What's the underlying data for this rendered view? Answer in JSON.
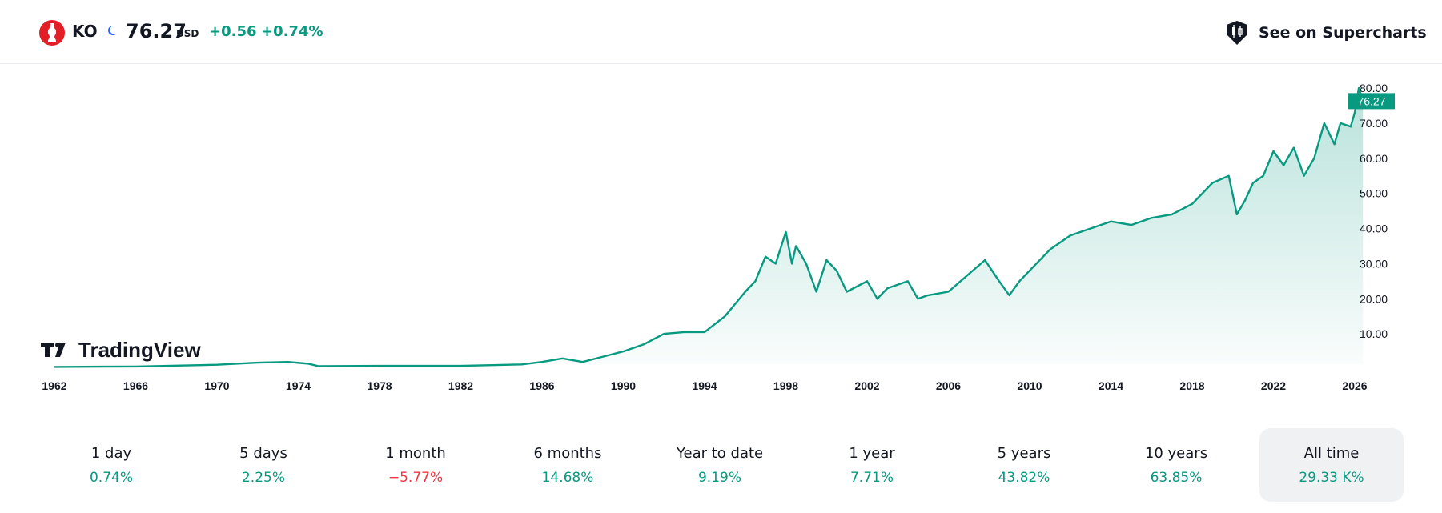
{
  "header": {
    "symbol": "KO",
    "price": "76.27",
    "currency": "USD",
    "change": "+0.56",
    "change_percent": "+0.74%",
    "supercharts_label": "See on Supercharts",
    "logo_icon": "coca-cola-bottle-icon",
    "session_icon": "moon-icon",
    "colors": {
      "up": "#089981",
      "down": "#f23645",
      "brand": "#e41e26"
    }
  },
  "chart_data": {
    "type": "area",
    "x_ticks": [
      "1962",
      "1966",
      "1970",
      "1974",
      "1978",
      "1982",
      "1986",
      "1990",
      "1994",
      "1998",
      "2002",
      "2006",
      "2010",
      "2014",
      "2018",
      "2022",
      "2026"
    ],
    "y_ticks": [
      "10.00",
      "20.00",
      "30.00",
      "40.00",
      "50.00",
      "60.00",
      "70.00",
      "80.00"
    ],
    "ylim": [
      0,
      80
    ],
    "last_price_label": "76.27",
    "line_color": "#089981",
    "watermark": "TradingView",
    "series": [
      {
        "x": [
          1962,
          1966,
          1970,
          1972,
          1973.5,
          1974.5,
          1975,
          1978,
          1982,
          1985,
          1986,
          1987,
          1987.8,
          1988,
          1989,
          1990,
          1991,
          1992,
          1993,
          1994,
          1995,
          1996,
          1996.5,
          1997,
          1997.5,
          1998,
          1998.3,
          1998.5,
          1999,
          1999.5,
          2000,
          2000.5,
          2001,
          2002,
          2002.5,
          2003,
          2003.5,
          2004,
          2004.5,
          2005,
          2006,
          2007,
          2007.8,
          2008.5,
          2009,
          2009.5,
          2010,
          2011,
          2012,
          2013,
          2014,
          2015,
          2016,
          2017,
          2018,
          2019,
          2019.8,
          2020.2,
          2020.6,
          2021,
          2021.5,
          2022,
          2022.5,
          2023,
          2023.5,
          2024,
          2024.5,
          2025,
          2025.3,
          2025.8,
          2026,
          2026.2,
          2026.4
        ],
        "y": [
          0.6,
          0.7,
          1.2,
          1.8,
          2.0,
          1.5,
          0.8,
          0.9,
          0.9,
          1.3,
          2.0,
          3.0,
          2.2,
          2.0,
          3.5,
          5.0,
          7.0,
          10.0,
          10.5,
          10.5,
          15.0,
          22.0,
          25.0,
          32.0,
          30.0,
          39.0,
          30.0,
          35.0,
          30.0,
          22.0,
          31.0,
          28.0,
          22.0,
          25.0,
          20.0,
          23.0,
          24.0,
          25.0,
          20.0,
          21.0,
          22.0,
          27.0,
          31.0,
          25.0,
          21.0,
          25.0,
          28.0,
          34.0,
          38.0,
          40.0,
          42.0,
          41.0,
          43.0,
          44.0,
          47.0,
          53.0,
          55.0,
          44.0,
          48.0,
          53.0,
          55.0,
          62.0,
          58.0,
          63.0,
          55.0,
          60.0,
          70.0,
          64.0,
          70.0,
          69.0,
          73.0,
          80.0,
          76.27
        ]
      }
    ]
  },
  "periods": [
    {
      "label": "1 day",
      "value": "0.74%",
      "trend": "up",
      "active": false
    },
    {
      "label": "5 days",
      "value": "2.25%",
      "trend": "up",
      "active": false
    },
    {
      "label": "1 month",
      "value": "−5.77%",
      "trend": "down",
      "active": false
    },
    {
      "label": "6 months",
      "value": "14.68%",
      "trend": "up",
      "active": false
    },
    {
      "label": "Year to date",
      "value": "9.19%",
      "trend": "up",
      "active": false
    },
    {
      "label": "1 year",
      "value": "7.71%",
      "trend": "up",
      "active": false
    },
    {
      "label": "5 years",
      "value": "43.82%",
      "trend": "up",
      "active": false
    },
    {
      "label": "10 years",
      "value": "63.85%",
      "trend": "up",
      "active": false
    },
    {
      "label": "All time",
      "value": "29.33 K%",
      "trend": "up",
      "active": true
    }
  ]
}
